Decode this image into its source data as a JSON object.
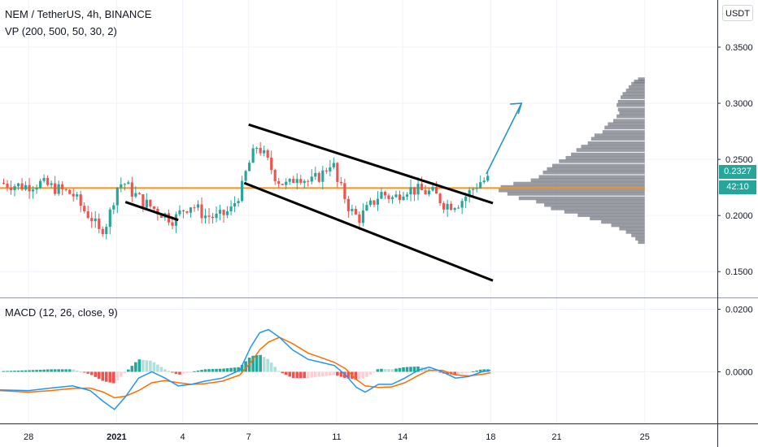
{
  "header": {
    "symbol_line": "NEM / TetherUS, 4h, BINANCE",
    "vp_line": "VP (200, 500, 50, 30, 2)",
    "macd_line": "MACD (12, 26, close, 9)",
    "currency": "USDT"
  },
  "price_tag": {
    "price": "0.2327",
    "timer": "42:10",
    "color": "#26a69a"
  },
  "colors": {
    "up": "#26a69a",
    "down": "#ef5350",
    "hline": "#f7931a",
    "arrow": "#2196c9",
    "vp": "#787b86",
    "macd": "#2196f3",
    "signal": "#ff6d00",
    "hist_up": "#26a69a",
    "hist_up_light": "#b2dfdb",
    "hist_dn": "#ef5350",
    "hist_dn_light": "#ffcdd2"
  },
  "chart_data": [
    {
      "type": "candlestick",
      "title": "NEM / TetherUS, 4h, BINANCE",
      "y_ticks": [
        "0.3500",
        "0.3000",
        "0.2500",
        "0.2000",
        "0.1500"
      ],
      "y_tick_values": [
        0.35,
        0.3,
        0.25,
        0.2,
        0.15
      ],
      "ylim": [
        0.127,
        0.392
      ],
      "x_ticks": [
        "28",
        "2021",
        "4",
        "7",
        "11",
        "14",
        "18",
        "21",
        "25"
      ],
      "x_tick_days": [
        -4,
        0,
        3,
        6,
        10,
        13,
        17,
        20,
        24
      ],
      "xlim_days": [
        -5.3,
        27.3
      ],
      "horizontal_line": 0.2245,
      "last_price": 0.2327,
      "close_path": [
        [
          -5.3,
          0.229
        ],
        [
          -4.2,
          0.226
        ],
        [
          -3.5,
          0.229
        ],
        [
          -2.6,
          0.223
        ],
        [
          -2.0,
          0.219
        ],
        [
          -1.5,
          0.205
        ],
        [
          -1.1,
          0.197
        ],
        [
          -0.8,
          0.185
        ],
        [
          -0.4,
          0.195
        ],
        [
          0.0,
          0.225
        ],
        [
          0.3,
          0.23
        ],
        [
          0.7,
          0.221
        ],
        [
          1.2,
          0.212
        ],
        [
          1.8,
          0.205
        ],
        [
          2.6,
          0.196
        ],
        [
          3.0,
          0.205
        ],
        [
          3.4,
          0.21
        ],
        [
          4.0,
          0.2
        ],
        [
          4.6,
          0.198
        ],
        [
          5.2,
          0.205
        ],
        [
          5.7,
          0.225
        ],
        [
          5.9,
          0.24
        ],
        [
          6.1,
          0.25
        ],
        [
          6.4,
          0.263
        ],
        [
          6.8,
          0.25
        ],
        [
          7.3,
          0.232
        ],
        [
          7.8,
          0.226
        ],
        [
          8.2,
          0.237
        ],
        [
          8.8,
          0.229
        ],
        [
          9.4,
          0.238
        ],
        [
          9.8,
          0.25
        ],
        [
          10.0,
          0.23
        ],
        [
          10.3,
          0.22
        ],
        [
          10.6,
          0.205
        ],
        [
          11.0,
          0.197
        ],
        [
          11.5,
          0.208
        ],
        [
          12.0,
          0.22
        ],
        [
          12.6,
          0.215
        ],
        [
          13.1,
          0.224
        ],
        [
          13.8,
          0.222
        ],
        [
          14.4,
          0.22
        ],
        [
          14.9,
          0.21
        ],
        [
          15.2,
          0.21
        ],
        [
          15.6,
          0.212
        ],
        [
          16.0,
          0.22
        ],
        [
          16.5,
          0.23
        ],
        [
          17.0,
          0.2327
        ]
      ],
      "trendlines": [
        {
          "from": [
            6.0,
            0.281
          ],
          "to": [
            17.1,
            0.211
          ]
        },
        {
          "from": [
            5.8,
            0.229
          ],
          "to": [
            17.1,
            0.142
          ]
        },
        {
          "from": [
            0.4,
            0.212
          ],
          "to": [
            2.8,
            0.196
          ]
        }
      ],
      "projection_arrow": {
        "from": [
          16.8,
          0.237
        ],
        "to": [
          18.4,
          0.3
        ]
      },
      "volume_profile": {
        "anchor_day": 24.0,
        "rows": [
          [
            0.32,
            10
          ],
          [
            0.318,
            16
          ],
          [
            0.316,
            20
          ],
          [
            0.313,
            24
          ],
          [
            0.31,
            28
          ],
          [
            0.307,
            33
          ],
          [
            0.304,
            36
          ],
          [
            0.3,
            40
          ],
          [
            0.297,
            42
          ],
          [
            0.293,
            40
          ],
          [
            0.29,
            38
          ],
          [
            0.287,
            42
          ],
          [
            0.283,
            47
          ],
          [
            0.28,
            55
          ],
          [
            0.277,
            60
          ],
          [
            0.273,
            63
          ],
          [
            0.27,
            75
          ],
          [
            0.267,
            80
          ],
          [
            0.263,
            85
          ],
          [
            0.26,
            95
          ],
          [
            0.257,
            102
          ],
          [
            0.253,
            110
          ],
          [
            0.25,
            118
          ],
          [
            0.247,
            128
          ],
          [
            0.243,
            138
          ],
          [
            0.24,
            146
          ],
          [
            0.237,
            152
          ],
          [
            0.233,
            158
          ],
          [
            0.23,
            170
          ],
          [
            0.227,
            196
          ],
          [
            0.224,
            215
          ],
          [
            0.221,
            218
          ],
          [
            0.218,
            205
          ],
          [
            0.214,
            188
          ],
          [
            0.211,
            162
          ],
          [
            0.208,
            150
          ],
          [
            0.205,
            140
          ],
          [
            0.202,
            120
          ],
          [
            0.199,
            100
          ],
          [
            0.196,
            82
          ],
          [
            0.193,
            65
          ],
          [
            0.19,
            50
          ],
          [
            0.187,
            38
          ],
          [
            0.184,
            28
          ],
          [
            0.181,
            20
          ],
          [
            0.178,
            14
          ],
          [
            0.175,
            10
          ]
        ]
      }
    },
    {
      "type": "macd",
      "title": "MACD (12, 26, close, 9)",
      "y_ticks": [
        "0.0200",
        "0.0000"
      ],
      "y_tick_values": [
        0.02,
        0.0
      ],
      "ylim": [
        -0.0165,
        0.0235
      ],
      "macd": [
        [
          -5.3,
          -0.0058
        ],
        [
          -4.0,
          -0.006
        ],
        [
          -3.0,
          -0.0052
        ],
        [
          -2.0,
          -0.0045
        ],
        [
          -1.2,
          -0.006
        ],
        [
          -0.6,
          -0.0095
        ],
        [
          -0.1,
          -0.012
        ],
        [
          0.4,
          -0.008
        ],
        [
          1.0,
          -0.002
        ],
        [
          1.6,
          0.0
        ],
        [
          2.2,
          -0.002
        ],
        [
          2.8,
          -0.0045
        ],
        [
          3.4,
          -0.004
        ],
        [
          4.0,
          -0.003
        ],
        [
          4.8,
          -0.002
        ],
        [
          5.6,
          0.0005
        ],
        [
          6.1,
          0.008
        ],
        [
          6.5,
          0.0125
        ],
        [
          6.9,
          0.0135
        ],
        [
          7.4,
          0.011
        ],
        [
          8.0,
          0.007
        ],
        [
          8.7,
          0.004
        ],
        [
          9.3,
          0.003
        ],
        [
          9.9,
          0.002
        ],
        [
          10.4,
          -0.001
        ],
        [
          10.9,
          -0.005
        ],
        [
          11.3,
          -0.0065
        ],
        [
          11.9,
          -0.004
        ],
        [
          12.5,
          -0.004
        ],
        [
          13.1,
          -0.002
        ],
        [
          13.7,
          0.0005
        ],
        [
          14.2,
          0.0015
        ],
        [
          14.8,
          0.0
        ],
        [
          15.4,
          -0.002
        ],
        [
          16.0,
          -0.0015
        ],
        [
          16.6,
          0.0
        ],
        [
          17.0,
          0.0005
        ]
      ],
      "signal": [
        [
          -5.3,
          -0.006
        ],
        [
          -4.0,
          -0.0065
        ],
        [
          -3.0,
          -0.006
        ],
        [
          -2.0,
          -0.0053
        ],
        [
          -1.2,
          -0.0052
        ],
        [
          -0.6,
          -0.0065
        ],
        [
          -0.1,
          -0.0083
        ],
        [
          0.4,
          -0.0078
        ],
        [
          1.0,
          -0.006
        ],
        [
          1.6,
          -0.0035
        ],
        [
          2.2,
          -0.0028
        ],
        [
          2.8,
          -0.0035
        ],
        [
          3.4,
          -0.004
        ],
        [
          4.0,
          -0.0038
        ],
        [
          4.8,
          -0.003
        ],
        [
          5.6,
          -0.001
        ],
        [
          6.1,
          0.003
        ],
        [
          6.5,
          0.007
        ],
        [
          6.9,
          0.0095
        ],
        [
          7.4,
          0.011
        ],
        [
          8.0,
          0.009
        ],
        [
          8.7,
          0.006
        ],
        [
          9.3,
          0.0045
        ],
        [
          9.9,
          0.003
        ],
        [
          10.4,
          0.001
        ],
        [
          10.9,
          -0.0025
        ],
        [
          11.3,
          -0.0045
        ],
        [
          11.9,
          -0.005
        ],
        [
          12.5,
          -0.0048
        ],
        [
          13.1,
          -0.0035
        ],
        [
          13.7,
          -0.0012
        ],
        [
          14.2,
          0.0005
        ],
        [
          14.8,
          0.0005
        ],
        [
          15.4,
          -0.001
        ],
        [
          16.0,
          -0.0013
        ],
        [
          16.6,
          -0.0008
        ],
        [
          17.0,
          -0.0003
        ]
      ]
    }
  ]
}
